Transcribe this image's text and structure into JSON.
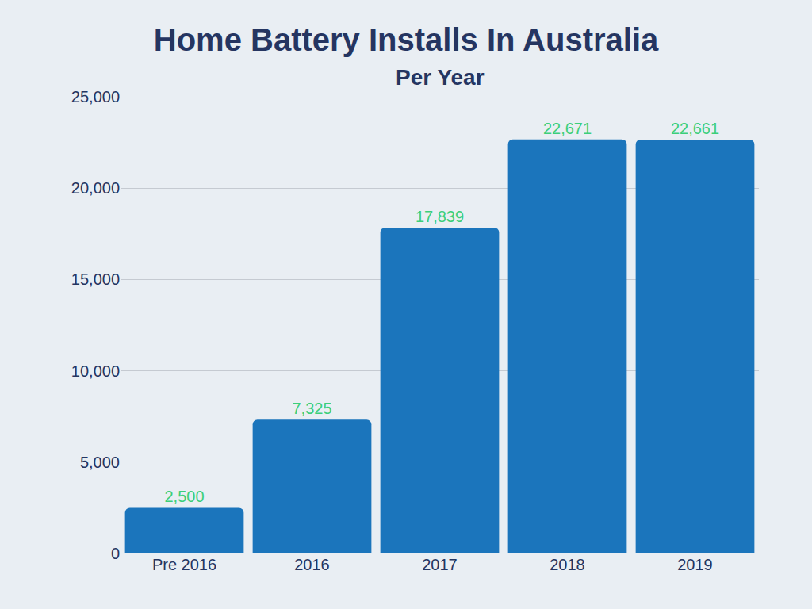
{
  "chart_data": {
    "type": "bar",
    "title": "Home Battery Installs In Australia",
    "subtitle": "Per Year",
    "categories": [
      "Pre 2016",
      "2016",
      "2017",
      "2018",
      "2019"
    ],
    "values": [
      2500,
      7325,
      17839,
      22671,
      22661
    ],
    "value_labels": [
      "2,500",
      "7,325",
      "17,839",
      "22,671",
      "22,661"
    ],
    "data_labels": true,
    "color": "#1b75bc",
    "ylim": [
      0,
      25000
    ],
    "yticks": [
      0,
      {
        "value": 5000,
        "label": "5,000"
      },
      {
        "value": 10000,
        "label": "10,000"
      },
      {
        "value": 15000,
        "label": "15,000"
      },
      {
        "value": 20000,
        "label": "20,000"
      },
      {
        "value": 25000,
        "label": "25,000"
      }
    ],
    "grid": true
  }
}
